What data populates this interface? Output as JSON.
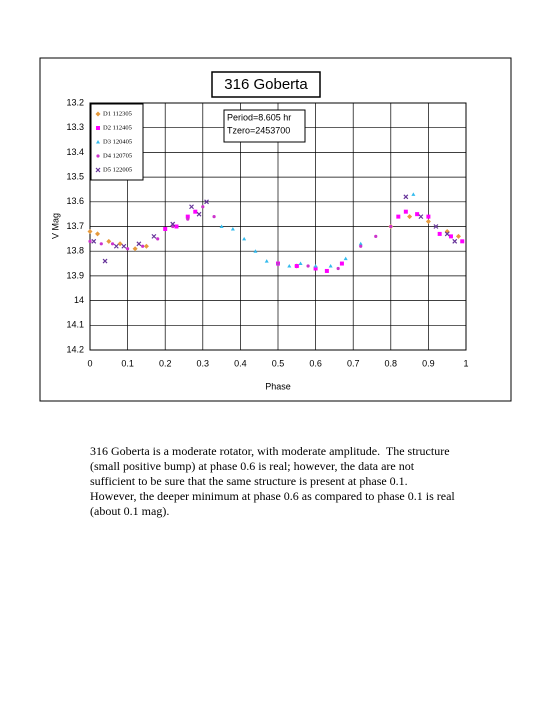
{
  "chart_data": {
    "type": "scatter",
    "title": "316 Goberta",
    "annotations": [
      "Period=8.605 hr",
      "Tzero=2453700"
    ],
    "x_label": "Phase",
    "y_label": "V Mag",
    "xlim": [
      0,
      1
    ],
    "xticks": [
      0,
      0.1,
      0.2,
      0.3,
      0.4,
      0.5,
      0.6,
      0.7,
      0.8,
      0.9,
      1
    ],
    "ylim": [
      13.2,
      14.2
    ],
    "yticks": [
      13.2,
      13.3,
      13.4,
      13.5,
      13.6,
      13.7,
      13.8,
      13.9,
      14,
      14.1,
      14.2
    ],
    "y_inverted": true,
    "grid": true,
    "legend": "upper-left",
    "series": [
      {
        "name": "D1 112305",
        "color": "#e69a3c",
        "marker": "diamond",
        "x": [
          0.0,
          0.02,
          0.05,
          0.08,
          0.12,
          0.15,
          0.55,
          0.8,
          0.85,
          0.9,
          0.95,
          0.98
        ],
        "values": [
          13.72,
          13.73,
          13.76,
          13.77,
          13.79,
          13.78,
          13.86,
          13.7,
          13.66,
          13.68,
          13.72,
          13.74
        ]
      },
      {
        "name": "D2 112405",
        "color": "#ff00ff",
        "marker": "square",
        "x": [
          0.2,
          0.23,
          0.26,
          0.28,
          0.5,
          0.55,
          0.6,
          0.63,
          0.67,
          0.82,
          0.84,
          0.87,
          0.9,
          0.93,
          0.96,
          0.99
        ],
        "values": [
          13.71,
          13.7,
          13.66,
          13.64,
          13.85,
          13.86,
          13.87,
          13.88,
          13.85,
          13.66,
          13.64,
          13.65,
          13.66,
          13.73,
          13.74,
          13.76
        ]
      },
      {
        "name": "D3 120405",
        "color": "#33bbee",
        "marker": "triangle",
        "x": [
          0.35,
          0.38,
          0.41,
          0.44,
          0.47,
          0.5,
          0.53,
          0.56,
          0.6,
          0.64,
          0.68,
          0.72,
          0.86
        ],
        "values": [
          13.7,
          13.71,
          13.75,
          13.8,
          13.84,
          13.85,
          13.86,
          13.85,
          13.86,
          13.86,
          13.83,
          13.77,
          13.57
        ]
      },
      {
        "name": "D4 120705",
        "color": "#cc33cc",
        "marker": "circle",
        "x": [
          0.0,
          0.03,
          0.06,
          0.1,
          0.14,
          0.18,
          0.22,
          0.26,
          0.3,
          0.33,
          0.5,
          0.58,
          0.66,
          0.72,
          0.76,
          0.8
        ],
        "values": [
          13.76,
          13.77,
          13.77,
          13.79,
          13.78,
          13.75,
          13.7,
          13.67,
          13.62,
          13.66,
          13.85,
          13.86,
          13.87,
          13.78,
          13.74,
          13.7
        ]
      },
      {
        "name": "D5 122005",
        "color": "#663399",
        "marker": "cross",
        "x": [
          0.01,
          0.04,
          0.07,
          0.09,
          0.13,
          0.17,
          0.22,
          0.27,
          0.29,
          0.31,
          0.84,
          0.88,
          0.92,
          0.95,
          0.97
        ],
        "values": [
          13.76,
          13.84,
          13.78,
          13.78,
          13.77,
          13.74,
          13.69,
          13.62,
          13.65,
          13.6,
          13.58,
          13.66,
          13.7,
          13.73,
          13.76
        ]
      }
    ]
  },
  "caption": "316 Goberta is a moderate rotator, with moderate amplitude.  The structure (small positive bump) at phase 0.6 is real; however, the data are not sufficient to be sure that the same structure is present at phase 0.1. However, the deeper minimum at phase 0.6 as compared to phase 0.1 is real (about 0.1 mag)."
}
